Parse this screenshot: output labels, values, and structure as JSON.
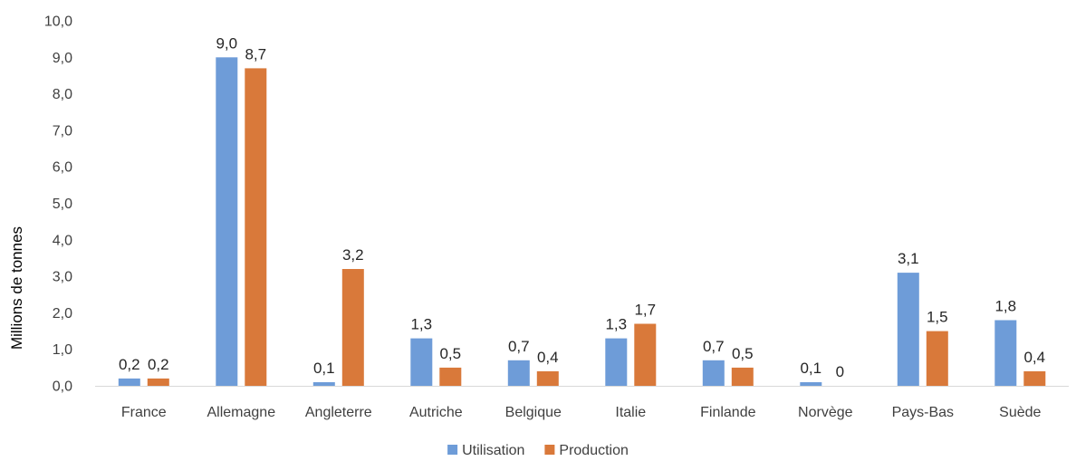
{
  "chart_data": {
    "type": "bar",
    "title": "",
    "xlabel": "",
    "ylabel": "Millions de tonnes",
    "ylim": [
      0,
      10
    ],
    "yticks": [
      "0,0",
      "1,0",
      "2,0",
      "3,0",
      "4,0",
      "5,0",
      "6,0",
      "7,0",
      "8,0",
      "9,0",
      "10,0"
    ],
    "grid": false,
    "legend_position": "bottom",
    "categories": [
      "France",
      "Allemagne",
      "Angleterre",
      "Autriche",
      "Belgique",
      "Italie",
      "Finlande",
      "Norvège",
      "Pays-Bas",
      "Suède"
    ],
    "series": [
      {
        "name": "Utilisation",
        "color": "#6E9CD8",
        "values": [
          0.2,
          9.0,
          0.1,
          1.3,
          0.7,
          1.3,
          0.7,
          0.1,
          3.1,
          1.8
        ],
        "labels": [
          "0,2",
          "9,0",
          "0,1",
          "1,3",
          "0,7",
          "1,3",
          "0,7",
          "0,1",
          "3,1",
          "1,8"
        ]
      },
      {
        "name": "Production",
        "color": "#D9793A",
        "values": [
          0.2,
          8.7,
          3.2,
          0.5,
          0.4,
          1.7,
          0.5,
          0,
          1.5,
          0.4
        ],
        "labels": [
          "0,2",
          "8,7",
          "3,2",
          "0,5",
          "0,4",
          "1,7",
          "0,5",
          "0",
          "1,5",
          "0,4"
        ]
      }
    ]
  }
}
